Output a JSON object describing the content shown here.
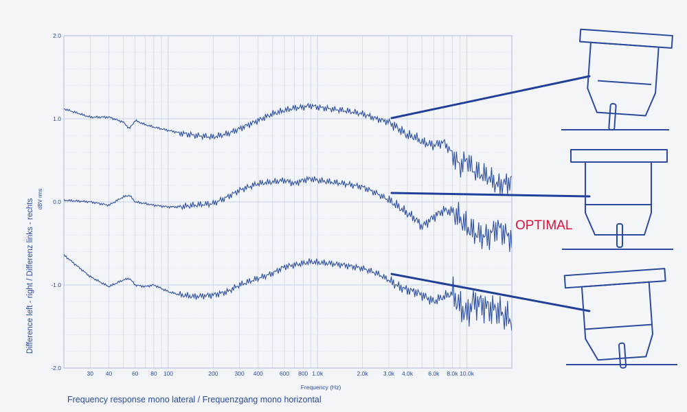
{
  "colors": {
    "background": "#f3f5f8",
    "grid": "#c9d3e6",
    "frame": "#aebbd6",
    "trace": "#2e4fa0",
    "ink": "#2b4a9e",
    "pointer": "#1f3f99",
    "optimal": "#e0103a"
  },
  "caption": "Frequency response mono lateral / Frequenzgang mono horizontal",
  "optimal_label": "OPTIMAL",
  "chart_data": {
    "type": "line",
    "title": "",
    "xlabel": "Frequency (Hz)",
    "ylabel": "Difference left - right / Differenz links - rechts",
    "ylabel_unit": "dBV rms",
    "x_scale": "log",
    "xlim": [
      20,
      20000
    ],
    "ylim": [
      -2.0,
      2.0
    ],
    "grid": true,
    "x_ticks": [
      {
        "value": 30,
        "label": "30"
      },
      {
        "value": 40,
        "label": "40"
      },
      {
        "value": 60,
        "label": "60"
      },
      {
        "value": 80,
        "label": "80"
      },
      {
        "value": 100,
        "label": "100"
      },
      {
        "value": 200,
        "label": "200"
      },
      {
        "value": 300,
        "label": "300"
      },
      {
        "value": 400,
        "label": "400"
      },
      {
        "value": 600,
        "label": "600"
      },
      {
        "value": 800,
        "label": "800"
      },
      {
        "value": 1000,
        "label": "1.0k"
      },
      {
        "value": 2000,
        "label": "2.0k"
      },
      {
        "value": 3000,
        "label": "3.0k"
      },
      {
        "value": 4000,
        "label": "4.0k"
      },
      {
        "value": 6000,
        "label": "6.0k"
      },
      {
        "value": 8000,
        "label": "8.0k"
      },
      {
        "value": 10000,
        "label": "10.0k"
      }
    ],
    "y_ticks": [
      {
        "value": 2.0,
        "label": "2.0"
      },
      {
        "value": 1.0,
        "label": "1.0"
      },
      {
        "value": 0.0,
        "label": "0.0"
      },
      {
        "value": -1.0,
        "label": "-1.0"
      },
      {
        "value": -2.0,
        "label": "-2.0"
      }
    ],
    "series": [
      {
        "x": [
          20,
          30,
          40,
          50,
          55,
          60,
          70,
          80,
          100,
          120,
          150,
          200,
          250,
          300,
          400,
          500,
          600,
          700,
          800,
          900,
          1000,
          1200,
          1500,
          2000,
          2500,
          3000,
          3500,
          4000,
          4500,
          5000,
          6000,
          7000,
          8000,
          9000,
          10000,
          11000,
          12000,
          14000,
          16000,
          18000,
          20000
        ],
        "values": [
          1.12,
          1.02,
          1.02,
          0.96,
          0.88,
          0.98,
          0.93,
          0.9,
          0.86,
          0.83,
          0.8,
          0.78,
          0.82,
          0.88,
          0.98,
          1.06,
          1.1,
          1.13,
          1.14,
          1.16,
          1.14,
          1.12,
          1.1,
          1.06,
          1.0,
          0.96,
          0.88,
          0.8,
          0.78,
          0.72,
          0.68,
          0.72,
          0.58,
          0.42,
          0.52,
          0.38,
          0.35,
          0.3,
          0.2,
          0.22,
          0.25
        ]
      },
      {
        "x": [
          20,
          30,
          40,
          50,
          55,
          60,
          70,
          80,
          100,
          120,
          150,
          200,
          250,
          300,
          400,
          500,
          600,
          700,
          800,
          900,
          1000,
          1200,
          1500,
          2000,
          2500,
          3000,
          3500,
          4000,
          4500,
          5000,
          6000,
          7000,
          8000,
          9000,
          10000,
          11000,
          12000,
          14000,
          16000,
          18000,
          20000
        ],
        "values": [
          0.02,
          0.0,
          -0.04,
          0.06,
          0.08,
          0.0,
          -0.02,
          -0.04,
          -0.06,
          -0.06,
          -0.04,
          -0.02,
          0.06,
          0.14,
          0.22,
          0.24,
          0.26,
          0.22,
          0.26,
          0.28,
          0.26,
          0.24,
          0.22,
          0.18,
          0.1,
          0.02,
          -0.06,
          -0.14,
          -0.2,
          -0.3,
          -0.18,
          -0.1,
          -0.12,
          -0.2,
          -0.3,
          -0.36,
          -0.4,
          -0.42,
          -0.3,
          -0.38,
          -0.45
        ]
      },
      {
        "x": [
          20,
          30,
          40,
          50,
          55,
          60,
          70,
          80,
          100,
          120,
          150,
          200,
          250,
          300,
          400,
          500,
          600,
          700,
          800,
          900,
          1000,
          1200,
          1500,
          2000,
          2500,
          3000,
          3500,
          4000,
          4500,
          5000,
          6000,
          7000,
          8000,
          9000,
          10000,
          11000,
          12000,
          14000,
          16000,
          18000,
          20000
        ],
        "values": [
          -0.64,
          -0.9,
          -1.02,
          -0.94,
          -0.92,
          -1.0,
          -1.02,
          -1.0,
          -1.08,
          -1.12,
          -1.14,
          -1.12,
          -1.08,
          -1.0,
          -0.92,
          -0.86,
          -0.78,
          -0.76,
          -0.74,
          -0.72,
          -0.73,
          -0.74,
          -0.76,
          -0.8,
          -0.86,
          -0.94,
          -1.02,
          -1.06,
          -1.08,
          -1.12,
          -1.2,
          -1.14,
          -1.1,
          -1.26,
          -1.36,
          -1.2,
          -1.22,
          -1.28,
          -1.3,
          -1.38,
          -1.42
        ]
      }
    ]
  }
}
